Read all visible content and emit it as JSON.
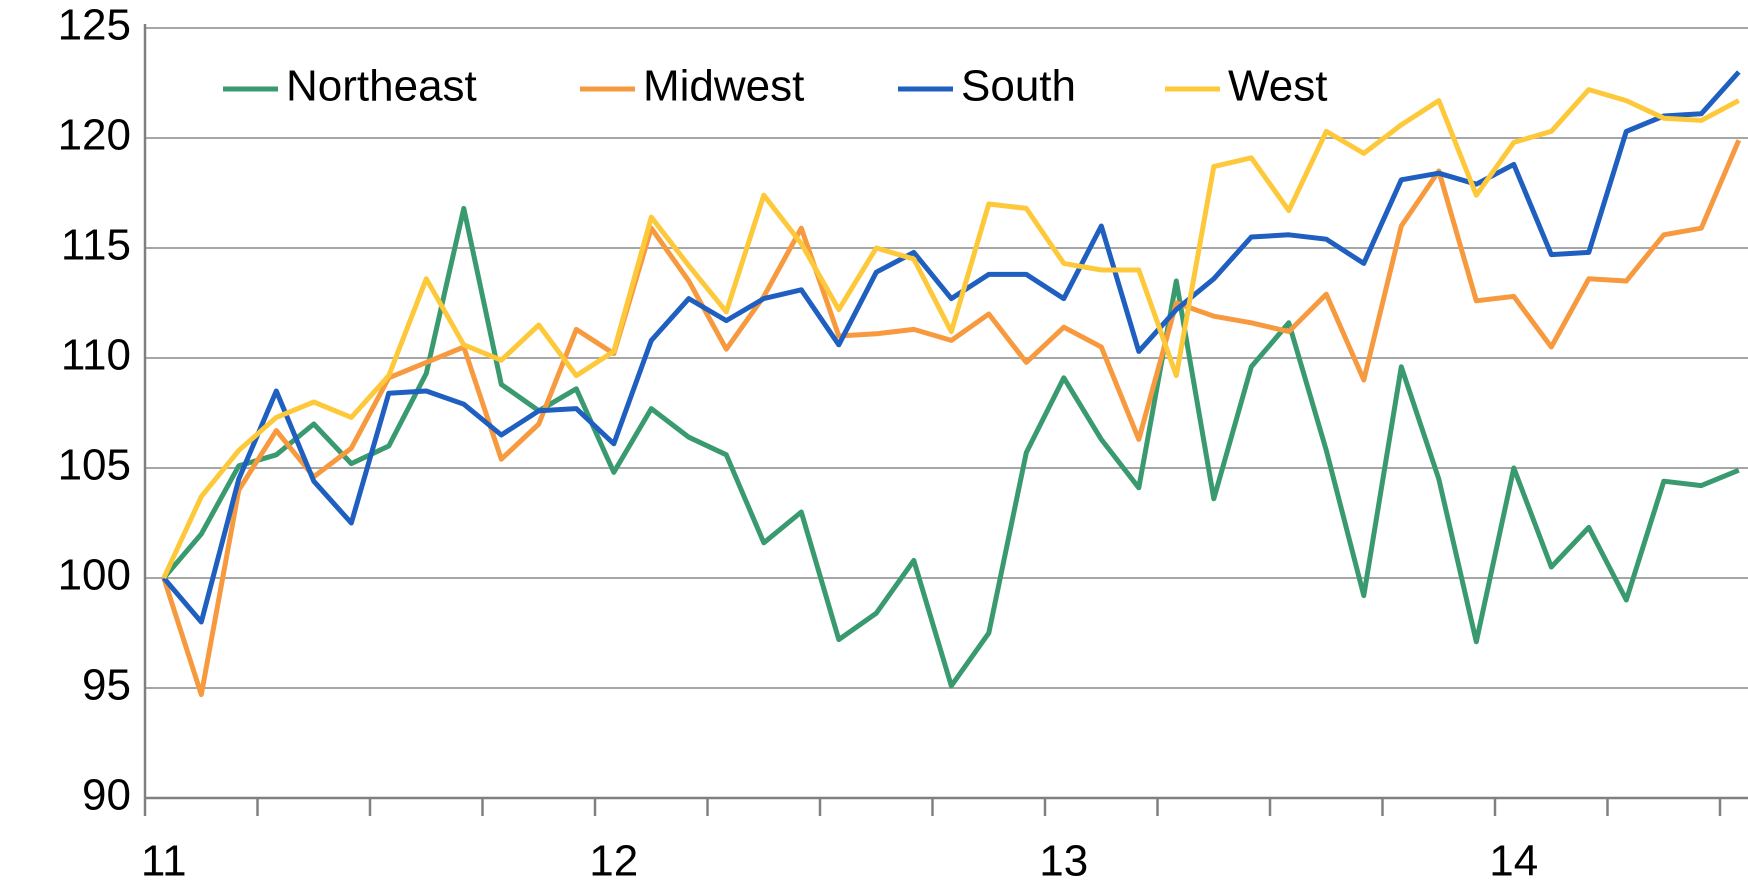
{
  "chart_data": {
    "type": "line",
    "categories": [
      "11",
      null,
      null,
      null,
      null,
      null,
      null,
      null,
      null,
      null,
      null,
      null,
      "12",
      null,
      null,
      null,
      null,
      null,
      null,
      null,
      null,
      null,
      null,
      null,
      "13",
      null,
      null,
      null,
      null,
      null,
      null,
      null,
      null,
      null,
      null,
      null,
      "14",
      null,
      null,
      null,
      null,
      null,
      null
    ],
    "series": [
      {
        "name": "Northeast",
        "color": "#3a9a6f",
        "values": [
          100,
          102,
          105.1,
          105.6,
          107,
          105.2,
          106,
          109.3,
          116.8,
          108.8,
          107.6,
          108.6,
          104.8,
          107.7,
          106.4,
          105.6,
          101.6,
          103,
          97.2,
          98.4,
          100.8,
          95.1,
          97.5,
          105.7,
          109.1,
          106.3,
          104.1,
          113.5,
          103.6,
          109.6,
          111.6,
          105.8,
          99.2,
          109.6,
          104.5,
          97.1,
          105,
          100.5,
          102.3,
          99,
          104.4,
          104.2,
          104.9
        ]
      },
      {
        "name": "Midwest",
        "color": "#f79a3f",
        "values": [
          100,
          94.7,
          104,
          106.7,
          104.6,
          105.9,
          109.1,
          109.8,
          110.5,
          105.4,
          107,
          111.3,
          110.2,
          115.9,
          113.5,
          110.4,
          112.8,
          115.9,
          111,
          111.1,
          111.3,
          110.8,
          112,
          109.8,
          111.4,
          110.5,
          106.3,
          112.5,
          111.9,
          111.6,
          111.2,
          112.9,
          109,
          116,
          118.5,
          112.6,
          112.8,
          110.5,
          113.6,
          113.5,
          115.6,
          115.9,
          119.9
        ]
      },
      {
        "name": "South",
        "color": "#1f5fbf",
        "values": [
          100,
          98,
          104.5,
          108.5,
          104.4,
          102.5,
          108.4,
          108.5,
          107.9,
          106.5,
          107.6,
          107.7,
          106.1,
          110.8,
          112.7,
          111.7,
          112.7,
          113.1,
          110.6,
          113.9,
          114.8,
          112.7,
          113.8,
          113.8,
          112.7,
          116,
          110.3,
          112.2,
          113.6,
          115.5,
          115.6,
          115.4,
          114.3,
          118.1,
          118.4,
          117.9,
          118.8,
          114.7,
          114.8,
          120.3,
          121,
          121.1,
          123
        ]
      },
      {
        "name": "West",
        "color": "#fdc93a",
        "values": [
          100,
          103.7,
          105.8,
          107.3,
          108,
          107.3,
          109.2,
          113.6,
          110.6,
          109.9,
          111.5,
          109.2,
          110.3,
          116.4,
          114.2,
          112.1,
          117.4,
          115.2,
          112.2,
          115,
          114.5,
          111.2,
          117,
          116.8,
          114.3,
          114,
          114,
          109.2,
          118.7,
          119.1,
          116.7,
          120.3,
          119.3,
          120.6,
          121.7,
          117.4,
          119.8,
          120.3,
          122.2,
          121.7,
          120.9,
          120.8,
          121.7
        ]
      }
    ],
    "ylim": [
      90,
      125
    ],
    "yticks": [
      90,
      95,
      100,
      105,
      110,
      115,
      120,
      125
    ],
    "grid": true,
    "legend": "top"
  }
}
